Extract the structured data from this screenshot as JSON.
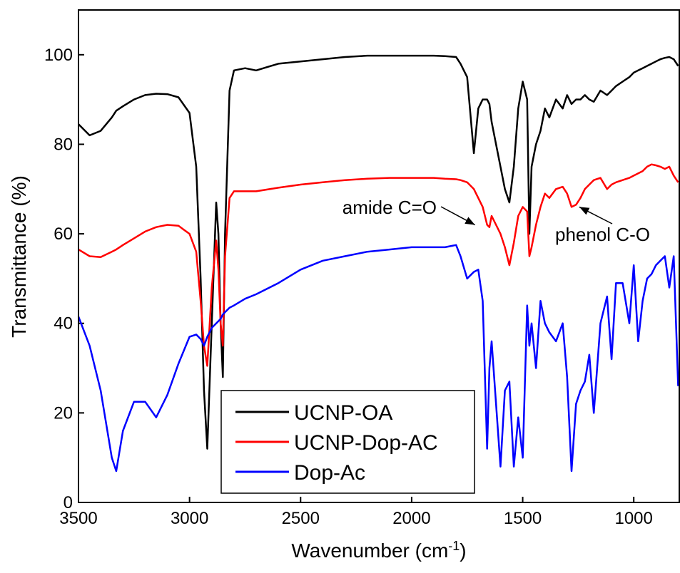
{
  "chart_data": {
    "type": "line",
    "x_label": {
      "text": "Wavenumber (cm",
      "superscript": "-1",
      "suffix": ")"
    },
    "y_label": "Transmittance (%)",
    "x": [
      3500,
      3450,
      3400,
      3350,
      3330,
      3300,
      3250,
      3200,
      3150,
      3100,
      3050,
      3000,
      2970,
      2950,
      2935,
      2920,
      2900,
      2880,
      2870,
      2860,
      2850,
      2840,
      2820,
      2800,
      2750,
      2700,
      2600,
      2500,
      2400,
      2300,
      2200,
      2100,
      2000,
      1900,
      1850,
      1800,
      1780,
      1750,
      1720,
      1700,
      1680,
      1660,
      1650,
      1640,
      1620,
      1600,
      1580,
      1560,
      1540,
      1520,
      1500,
      1480,
      1470,
      1460,
      1440,
      1420,
      1400,
      1380,
      1350,
      1320,
      1300,
      1280,
      1260,
      1240,
      1220,
      1200,
      1180,
      1150,
      1120,
      1100,
      1080,
      1050,
      1020,
      1000,
      980,
      960,
      940,
      920,
      900,
      880,
      860,
      840,
      820,
      800
    ],
    "series": [
      {
        "name": "UCNP-OA",
        "color": "#000000",
        "values": [
          84.5,
          82,
          83,
          86,
          87.5,
          88.5,
          90,
          91,
          91.3,
          91.2,
          90.5,
          87,
          75,
          50,
          25,
          12,
          40,
          67,
          60,
          40,
          28,
          60,
          92,
          96.5,
          97,
          96.5,
          98,
          98.5,
          99,
          99.5,
          99.8,
          99.8,
          99.8,
          99.8,
          99.7,
          99.5,
          98,
          95,
          78,
          88,
          90,
          90,
          89,
          85,
          80,
          75,
          70,
          67,
          75,
          88,
          94,
          90,
          60,
          75,
          80,
          83,
          88,
          86,
          90,
          88,
          91,
          89,
          90,
          90,
          91,
          90,
          89.5,
          92,
          91,
          92,
          93,
          94,
          95,
          96,
          96.5,
          97,
          97.5,
          98,
          98.5,
          99,
          99.3,
          99.5,
          99,
          97.5
        ]
      },
      {
        "name": "UCNP-Dop-AC",
        "color": "#ff0000",
        "values": [
          56.5,
          55,
          54.8,
          56,
          56.5,
          57.5,
          59,
          60.5,
          61.5,
          62,
          61.8,
          60,
          56,
          45,
          35,
          30.5,
          48,
          58.5,
          52,
          40,
          35,
          55,
          68,
          69.5,
          69.5,
          69.5,
          70.3,
          71,
          71.5,
          72,
          72.3,
          72.5,
          72.5,
          72.5,
          72.3,
          72.2,
          72,
          71.5,
          70,
          68,
          66,
          62,
          61.5,
          64,
          62,
          60,
          57,
          53,
          58,
          64,
          66,
          65,
          55,
          57,
          62,
          66,
          69,
          68,
          70,
          70.5,
          69,
          66,
          66.5,
          68,
          70,
          71,
          72,
          72.5,
          70,
          71,
          71.5,
          72,
          72.5,
          73,
          73.5,
          74,
          75,
          75.5,
          75.3,
          75,
          74.5,
          75,
          73,
          71.5
        ]
      },
      {
        "name": "Dop-Ac",
        "color": "#0000ff",
        "values": [
          41.5,
          35,
          25,
          10,
          7,
          16,
          22.5,
          22.5,
          19,
          24,
          31,
          37,
          37.5,
          36.5,
          35,
          37,
          39,
          40,
          40.5,
          41,
          42,
          42.5,
          43.5,
          44,
          45.5,
          46.5,
          49,
          52,
          54,
          55,
          56,
          56.5,
          57,
          57,
          57,
          57.5,
          55,
          50,
          51.5,
          52,
          45,
          12,
          30,
          36,
          22,
          8,
          25,
          27,
          8,
          19,
          10,
          44,
          35,
          40,
          30,
          45,
          40,
          38,
          36,
          40,
          28,
          7,
          22,
          25,
          27,
          33,
          20,
          40,
          46,
          32,
          49,
          49,
          40,
          53,
          36,
          45,
          50,
          51,
          53,
          54,
          55,
          48,
          55,
          26
        ]
      }
    ],
    "xlim": [
      3500,
      795
    ],
    "ylim": [
      0,
      110
    ],
    "xticks": [
      3500,
      3000,
      2500,
      2000,
      1500,
      1000
    ],
    "yticks": [
      0,
      20,
      40,
      60,
      80,
      100
    ],
    "legend": "lower center",
    "annotations": [
      {
        "text": "amide C=O",
        "xy": [
          1715,
          62
        ]
      },
      {
        "text": "phenol C-O",
        "xy": [
          1245,
          66
        ]
      }
    ]
  }
}
